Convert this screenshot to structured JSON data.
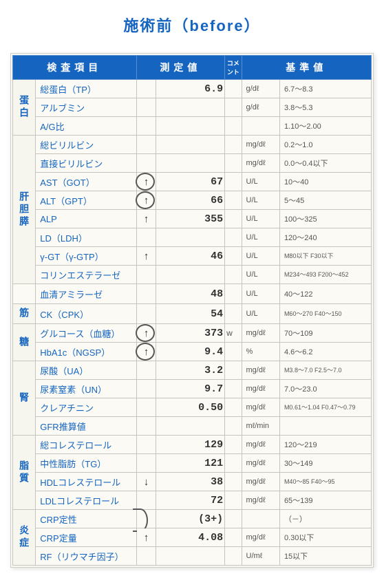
{
  "title": "施術前（before）",
  "theme": {
    "header_bg": "#1565c0",
    "header_fg": "#ffffff",
    "paper_bg": "#fbfaf4",
    "grid": "#c5c5bc",
    "accent": "#1565c0"
  },
  "headers": {
    "item": "検査項目",
    "value": "測定値",
    "comment": "コメント",
    "reference": "基準値"
  },
  "groups": [
    {
      "label": "蛋白",
      "span": 3,
      "rows": [
        {
          "name": "総蛋白（TP）",
          "flag": "",
          "val": "6.9",
          "unit": "g/dℓ",
          "ref": "6.7～8.3"
        },
        {
          "name": "アルブミン",
          "flag": "",
          "val": "",
          "unit": "g/dℓ",
          "ref": "3.8～5.3"
        },
        {
          "name": "A/G比",
          "flag": "",
          "val": "",
          "unit": "",
          "ref": "1.10～2.00"
        }
      ]
    },
    {
      "label": "肝胆膵",
      "span": 8,
      "rows": [
        {
          "name": "総ビリルビン",
          "flag": "",
          "val": "",
          "unit": "mg/dℓ",
          "ref": "0.2～1.0"
        },
        {
          "name": "直接ビリルビン",
          "flag": "",
          "val": "",
          "unit": "mg/dℓ",
          "ref": "0.0～0.4以下"
        },
        {
          "name": "AST（GOT）",
          "flag": "↑",
          "val": "67",
          "unit": "U/L",
          "ref": "10～40",
          "circled": true
        },
        {
          "name": "ALT（GPT）",
          "flag": "↑",
          "val": "66",
          "unit": "U/L",
          "ref": "5～45",
          "circled": true
        },
        {
          "name": "ALP",
          "flag": "↑",
          "val": "355",
          "unit": "U/L",
          "ref": "100～325"
        },
        {
          "name": "LD（LDH）",
          "flag": "",
          "val": "",
          "unit": "U/L",
          "ref": "120～240"
        },
        {
          "name": "γ-GT（γ-GTP）",
          "flag": "↑",
          "val": "46",
          "unit": "U/L",
          "ref": "M80以下 F30以下",
          "tiny": true
        },
        {
          "name": "コリンエステラーゼ",
          "flag": "",
          "val": "",
          "unit": "U/L",
          "ref": "M234～493 F200～452",
          "tiny": true
        }
      ]
    },
    {
      "label": "",
      "span": 1,
      "rows": [
        {
          "name": "血清アミラーゼ",
          "flag": "",
          "val": "48",
          "unit": "U/L",
          "ref": "40～122"
        }
      ]
    },
    {
      "label": "筋",
      "span": 1,
      "rows": [
        {
          "name": "CK（CPK）",
          "flag": "",
          "val": "54",
          "unit": "U/L",
          "ref": "M60～270 F40～150",
          "tiny": true
        }
      ]
    },
    {
      "label": "糖",
      "span": 2,
      "rows": [
        {
          "name": "グルコース（血糖）",
          "flag": "↑",
          "val": "373",
          "suf": "w",
          "unit": "mg/dℓ",
          "ref": "70～109",
          "circled": true
        },
        {
          "name": "HbA1c（NGSP）",
          "flag": "↑",
          "val": "9.4",
          "unit": "%",
          "ref": "4.6～6.2",
          "circled": true
        }
      ]
    },
    {
      "label": "腎",
      "span": 4,
      "rows": [
        {
          "name": "尿酸（UA）",
          "flag": "",
          "val": "3.2",
          "unit": "mg/dℓ",
          "ref": "M3.8～7.0 F2.5～7.0",
          "tiny": true
        },
        {
          "name": "尿素窒素（UN）",
          "flag": "",
          "val": "9.7",
          "unit": "mg/dℓ",
          "ref": "7.0～23.0"
        },
        {
          "name": "クレアチニン",
          "flag": "",
          "val": "0.50",
          "unit": "mg/dℓ",
          "ref": "M0.61～1.04 F0.47～0.79",
          "tiny": true
        },
        {
          "name": "GFR推算値",
          "flag": "",
          "val": "",
          "unit": "mℓ/min",
          "ref": ""
        }
      ]
    },
    {
      "label": "脂質",
      "span": 4,
      "rows": [
        {
          "name": "総コレステロール",
          "flag": "",
          "val": "129",
          "unit": "mg/dℓ",
          "ref": "120～219"
        },
        {
          "name": "中性脂肪（TG）",
          "flag": "",
          "val": "121",
          "unit": "mg/dℓ",
          "ref": "30～149"
        },
        {
          "name": "HDLコレステロール",
          "flag": "↓",
          "val": "38",
          "unit": "mg/dℓ",
          "ref": "M40～85 F40～95",
          "tiny": true
        },
        {
          "name": "LDLコレステロール",
          "flag": "",
          "val": "72",
          "unit": "mg/dℓ",
          "ref": "65～139"
        }
      ]
    },
    {
      "label": "炎症",
      "span": 3,
      "rows": [
        {
          "name": "CRP定性",
          "flag": "",
          "val": "(3+)",
          "paren": true,
          "unit": "",
          "ref": "（－）",
          "circled_half": true
        },
        {
          "name": "CRP定量",
          "flag": "↑",
          "val": "4.08",
          "unit": "mg/dℓ",
          "ref": "0.30以下"
        },
        {
          "name": "RF（リウマチ因子）",
          "flag": "",
          "val": "",
          "unit": "U/mℓ",
          "ref": "15以下"
        }
      ]
    }
  ]
}
